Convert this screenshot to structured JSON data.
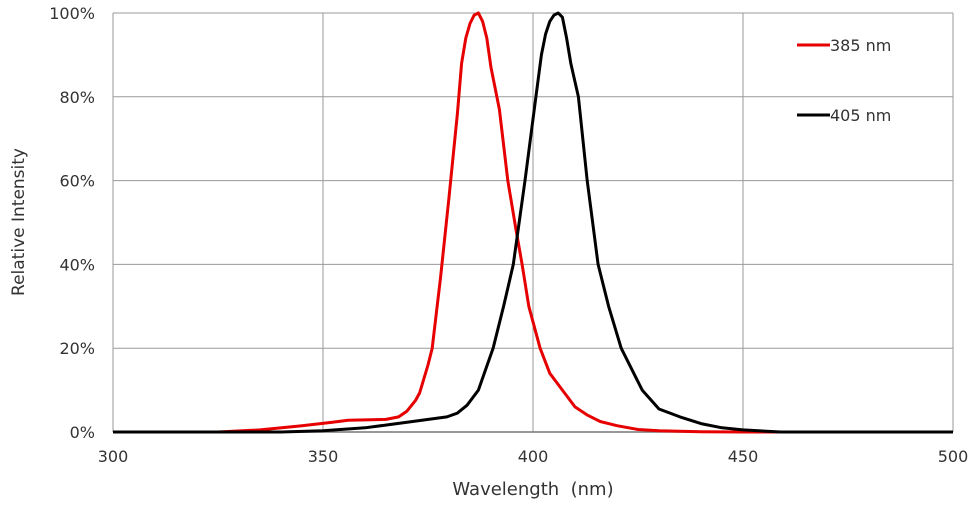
{
  "chart_data": {
    "type": "line",
    "title": "",
    "xlabel": "Wavelength  (nm)",
    "ylabel": "Relative Intensity",
    "xlim": [
      300,
      500
    ],
    "ylim": [
      0,
      100
    ],
    "xticks": [
      300,
      350,
      400,
      450,
      500
    ],
    "yticks": [
      0,
      20,
      40,
      60,
      80,
      100
    ],
    "xtick_labels": [
      "300",
      "350",
      "400",
      "450",
      "500"
    ],
    "ytick_labels": [
      "0%",
      "20%",
      "40%",
      "60%",
      "80%",
      "100%"
    ],
    "grid": true,
    "legend_position": "top-right",
    "series": [
      {
        "name": "385 nm",
        "color": "#e60000",
        "points": [
          [
            300,
            0
          ],
          [
            325,
            0
          ],
          [
            335,
            0.5
          ],
          [
            345,
            1.5
          ],
          [
            352,
            2.3
          ],
          [
            356,
            2.8
          ],
          [
            365,
            3
          ],
          [
            368,
            3.6
          ],
          [
            370,
            5
          ],
          [
            372,
            7.5
          ],
          [
            373,
            9.3
          ],
          [
            375,
            16
          ],
          [
            376,
            20
          ],
          [
            378,
            37
          ],
          [
            380,
            56
          ],
          [
            382,
            76
          ],
          [
            383,
            88
          ],
          [
            384,
            94
          ],
          [
            385,
            97.5
          ],
          [
            386,
            99.5
          ],
          [
            387,
            100
          ],
          [
            388,
            98
          ],
          [
            389,
            94
          ],
          [
            390,
            87
          ],
          [
            392,
            77
          ],
          [
            394,
            60
          ],
          [
            396,
            48
          ],
          [
            397.4,
            40
          ],
          [
            399,
            30
          ],
          [
            401.7,
            20
          ],
          [
            404,
            14
          ],
          [
            407,
            10
          ],
          [
            410,
            6
          ],
          [
            413,
            4
          ],
          [
            416,
            2.5
          ],
          [
            420,
            1.5
          ],
          [
            425,
            0.6
          ],
          [
            430,
            0.3
          ],
          [
            440,
            0.05
          ],
          [
            450,
            0
          ],
          [
            500,
            0
          ]
        ]
      },
      {
        "name": "405 nm",
        "color": "#000000",
        "points": [
          [
            300,
            0
          ],
          [
            340,
            0
          ],
          [
            350,
            0.3
          ],
          [
            360,
            1
          ],
          [
            366,
            1.8
          ],
          [
            372,
            2.6
          ],
          [
            379.5,
            3.6
          ],
          [
            382,
            4.5
          ],
          [
            384.3,
            6.4
          ],
          [
            387,
            10
          ],
          [
            390.5,
            20
          ],
          [
            393,
            30
          ],
          [
            395.3,
            40
          ],
          [
            398.1,
            60
          ],
          [
            400.7,
            80
          ],
          [
            402,
            90
          ],
          [
            403,
            95
          ],
          [
            404,
            98
          ],
          [
            405,
            99.5
          ],
          [
            406,
            100
          ],
          [
            407,
            99
          ],
          [
            408,
            94
          ],
          [
            409,
            88
          ],
          [
            410.8,
            80
          ],
          [
            412.9,
            60
          ],
          [
            415.5,
            40
          ],
          [
            418,
            30
          ],
          [
            421,
            20
          ],
          [
            426,
            10
          ],
          [
            430,
            5.5
          ],
          [
            435,
            3.6
          ],
          [
            440,
            2
          ],
          [
            445,
            1
          ],
          [
            450,
            0.5
          ],
          [
            459,
            0
          ],
          [
            500,
            0
          ]
        ]
      }
    ]
  }
}
